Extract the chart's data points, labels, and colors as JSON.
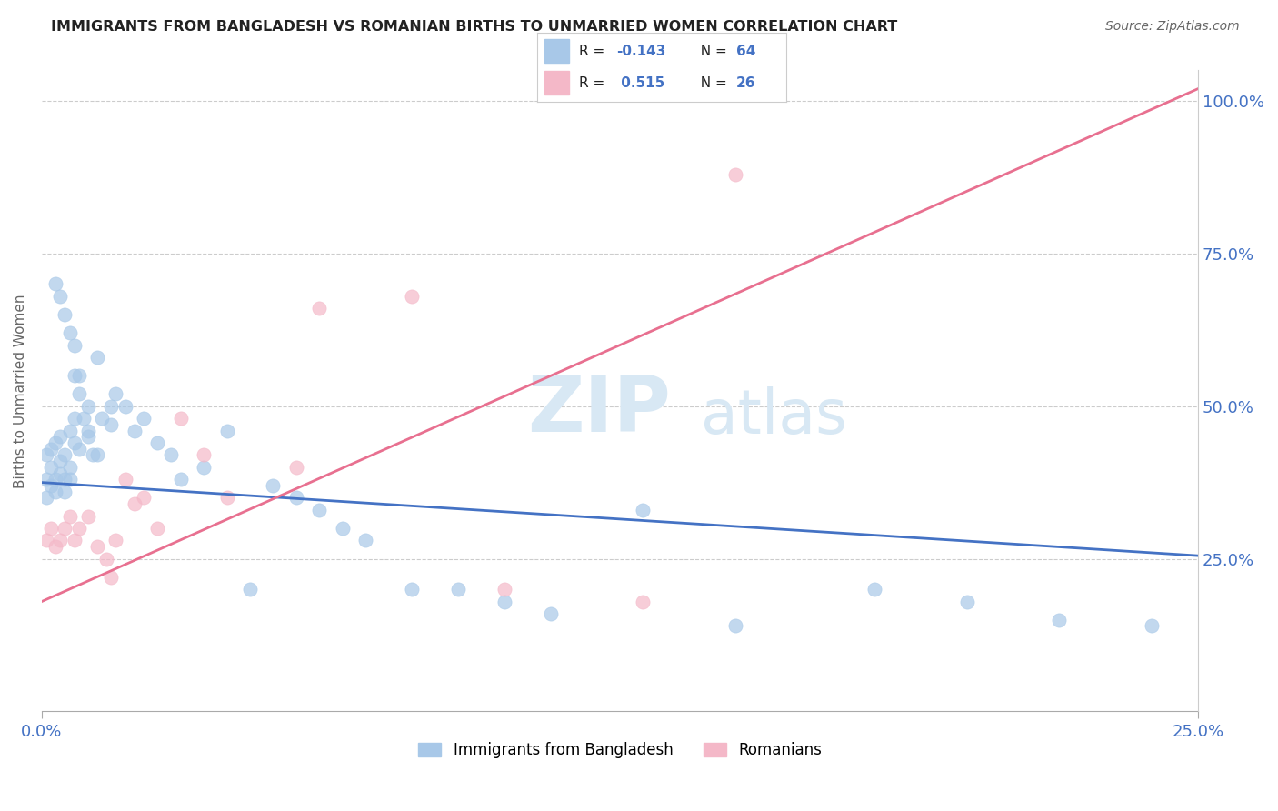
{
  "title": "IMMIGRANTS FROM BANGLADESH VS ROMANIAN BIRTHS TO UNMARRIED WOMEN CORRELATION CHART",
  "source": "Source: ZipAtlas.com",
  "ylabel": "Births to Unmarried Women",
  "color_blue": "#A8C8E8",
  "color_pink": "#F4B8C8",
  "color_blue_line": "#4472C4",
  "color_pink_line": "#E87090",
  "color_axis_label": "#4472C4",
  "watermark_zip": "ZIP",
  "watermark_atlas": "atlas",
  "watermark_color": "#D8E8F4",
  "bd_line_x0": 0.0,
  "bd_line_y0": 0.375,
  "bd_line_x1": 0.25,
  "bd_line_y1": 0.255,
  "ro_line_x0": 0.0,
  "ro_line_y0": 0.18,
  "ro_line_x1": 0.25,
  "ro_line_y1": 1.02,
  "xlim": [
    0.0,
    0.25
  ],
  "ylim": [
    0.0,
    1.05
  ],
  "ytick_vals": [
    0.25,
    0.5,
    0.75,
    1.0
  ],
  "ytick_labels": [
    "25.0%",
    "50.0%",
    "75.0%",
    "100.0%"
  ],
  "xtick_vals": [
    0.0,
    0.25
  ],
  "xtick_labels": [
    "0.0%",
    "25.0%"
  ],
  "bd_x": [
    0.001,
    0.001,
    0.001,
    0.002,
    0.002,
    0.002,
    0.003,
    0.003,
    0.003,
    0.004,
    0.004,
    0.004,
    0.005,
    0.005,
    0.005,
    0.006,
    0.006,
    0.006,
    0.007,
    0.007,
    0.007,
    0.008,
    0.008,
    0.009,
    0.01,
    0.01,
    0.011,
    0.012,
    0.013,
    0.015,
    0.015,
    0.016,
    0.018,
    0.02,
    0.022,
    0.025,
    0.028,
    0.03,
    0.035,
    0.04,
    0.045,
    0.05,
    0.055,
    0.06,
    0.065,
    0.07,
    0.08,
    0.09,
    0.1,
    0.11,
    0.13,
    0.15,
    0.18,
    0.2,
    0.22,
    0.24,
    0.003,
    0.004,
    0.005,
    0.006,
    0.007,
    0.008,
    0.01,
    0.012
  ],
  "bd_y": [
    0.38,
    0.42,
    0.35,
    0.4,
    0.37,
    0.43,
    0.36,
    0.44,
    0.38,
    0.41,
    0.39,
    0.45,
    0.38,
    0.42,
    0.36,
    0.46,
    0.4,
    0.38,
    0.55,
    0.48,
    0.44,
    0.52,
    0.43,
    0.48,
    0.5,
    0.46,
    0.42,
    0.58,
    0.48,
    0.5,
    0.47,
    0.52,
    0.5,
    0.46,
    0.48,
    0.44,
    0.42,
    0.38,
    0.4,
    0.46,
    0.2,
    0.37,
    0.35,
    0.33,
    0.3,
    0.28,
    0.2,
    0.2,
    0.18,
    0.16,
    0.33,
    0.14,
    0.2,
    0.18,
    0.15,
    0.14,
    0.7,
    0.68,
    0.65,
    0.62,
    0.6,
    0.55,
    0.45,
    0.42
  ],
  "ro_x": [
    0.001,
    0.002,
    0.003,
    0.004,
    0.005,
    0.006,
    0.007,
    0.008,
    0.01,
    0.012,
    0.014,
    0.015,
    0.016,
    0.018,
    0.02,
    0.022,
    0.025,
    0.03,
    0.035,
    0.04,
    0.055,
    0.06,
    0.08,
    0.1,
    0.13,
    0.15
  ],
  "ro_y": [
    0.28,
    0.3,
    0.27,
    0.28,
    0.3,
    0.32,
    0.28,
    0.3,
    0.32,
    0.27,
    0.25,
    0.22,
    0.28,
    0.38,
    0.34,
    0.35,
    0.3,
    0.48,
    0.42,
    0.35,
    0.4,
    0.66,
    0.68,
    0.2,
    0.18,
    0.88
  ]
}
